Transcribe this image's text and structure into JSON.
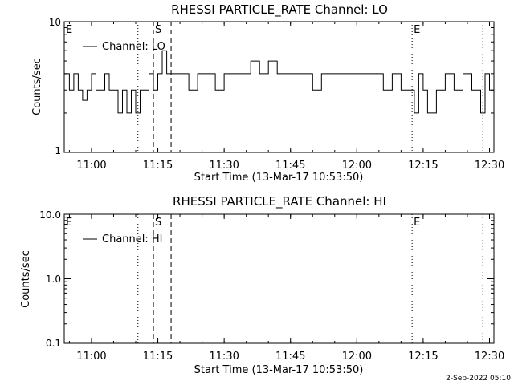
{
  "footer_date": "2-Sep-2022 05:10",
  "chart_data": [
    {
      "type": "line",
      "title": "RHESSI PARTICLE_RATE Channel: LO",
      "xlabel": "Start Time (13-Mar-17 10:53:50)",
      "ylabel": "Counts/sec",
      "yscale": "log",
      "ylim": [
        1,
        10
      ],
      "xlim": [
        "10:53:50",
        "12:31:00"
      ],
      "xticks": [
        "11:00",
        "11:15",
        "11:30",
        "11:45",
        "12:00",
        "12:15",
        "12:30"
      ],
      "yticks": [
        "1",
        "10"
      ],
      "legend": "Channel: LO",
      "markers": [
        {
          "label": "E",
          "time": "10:53:50",
          "style": "none"
        },
        {
          "label": "",
          "time": "11:10:30",
          "style": "dotted"
        },
        {
          "label": "S",
          "time": "11:14:00",
          "style": "dashed"
        },
        {
          "label": "",
          "time": "11:18:00",
          "style": "dashed"
        },
        {
          "label": "E",
          "time": "12:12:30",
          "style": "dotted"
        },
        {
          "label": "",
          "time": "12:28:30",
          "style": "dotted"
        }
      ],
      "series": [
        {
          "name": "Channel: LO",
          "x": [
            "10:53:50",
            "10:55:00",
            "10:56:00",
            "10:57:00",
            "10:58:00",
            "10:59:00",
            "11:00:00",
            "11:01:00",
            "11:02:00",
            "11:03:00",
            "11:04:00",
            "11:05:00",
            "11:06:00",
            "11:07:00",
            "11:08:00",
            "11:09:00",
            "11:10:00",
            "11:11:00",
            "11:12:00",
            "11:13:00",
            "11:14:00",
            "11:15:00",
            "11:16:00",
            "11:17:00",
            "11:18:00",
            "11:20:00",
            "11:22:00",
            "11:24:00",
            "11:26:00",
            "11:28:00",
            "11:30:00",
            "11:32:00",
            "11:34:00",
            "11:36:00",
            "11:38:00",
            "11:40:00",
            "11:42:00",
            "11:44:00",
            "11:46:00",
            "11:48:00",
            "11:50:00",
            "11:52:00",
            "11:54:00",
            "11:56:00",
            "11:58:00",
            "12:00:00",
            "12:02:00",
            "12:04:00",
            "12:06:00",
            "12:08:00",
            "12:10:00",
            "12:12:00",
            "12:13:00",
            "12:14:00",
            "12:15:00",
            "12:16:00",
            "12:18:00",
            "12:20:00",
            "12:22:00",
            "12:24:00",
            "12:26:00",
            "12:28:00",
            "12:29:00",
            "12:30:00"
          ],
          "y": [
            4,
            3,
            4,
            3,
            2.5,
            3,
            4,
            3,
            3,
            4,
            3,
            3,
            2,
            3,
            2,
            3,
            2,
            3,
            3,
            4,
            3,
            4,
            6,
            4,
            4,
            4,
            3,
            4,
            4,
            3,
            4,
            4,
            4,
            5,
            4,
            5,
            4,
            4,
            4,
            4,
            3,
            4,
            4,
            4,
            4,
            4,
            4,
            4,
            3,
            4,
            3,
            3,
            2,
            4,
            3,
            2,
            3,
            4,
            3,
            4,
            3,
            2,
            4,
            3
          ]
        }
      ]
    },
    {
      "type": "line",
      "title": "RHESSI PARTICLE_RATE Channel: HI",
      "xlabel": "Start Time (13-Mar-17 10:53:50)",
      "ylabel": "Counts/sec",
      "yscale": "log",
      "ylim": [
        0.1,
        10
      ],
      "xlim": [
        "10:53:50",
        "12:31:00"
      ],
      "xticks": [
        "11:00",
        "11:15",
        "11:30",
        "11:45",
        "12:00",
        "12:15",
        "12:30"
      ],
      "yticks": [
        "0.1",
        "1.0",
        "10.0"
      ],
      "legend": "Channel: HI",
      "markers": [
        {
          "label": "E",
          "time": "10:53:50",
          "style": "none"
        },
        {
          "label": "",
          "time": "11:10:30",
          "style": "dotted"
        },
        {
          "label": "S",
          "time": "11:14:00",
          "style": "dashed"
        },
        {
          "label": "",
          "time": "11:18:00",
          "style": "dashed"
        },
        {
          "label": "E",
          "time": "12:12:30",
          "style": "dotted"
        },
        {
          "label": "",
          "time": "12:28:30",
          "style": "dotted"
        }
      ],
      "series": [
        {
          "name": "Channel: HI",
          "x": [],
          "y": []
        }
      ]
    }
  ]
}
